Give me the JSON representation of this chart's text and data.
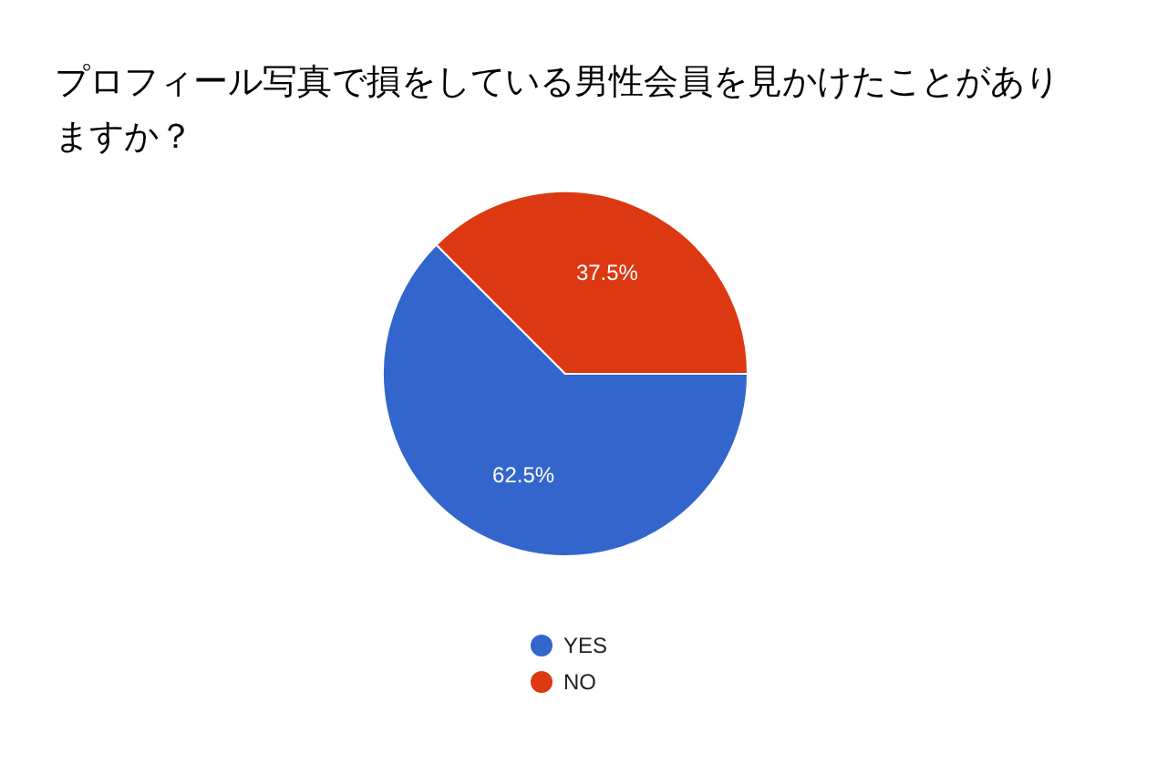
{
  "chart_data": {
    "type": "pie",
    "title": "プロフィール写真で損をしている男性会員を見かけたことがありますか？",
    "categories": [
      "YES",
      "NO"
    ],
    "values": [
      62.5,
      37.5
    ],
    "colors": [
      "#3366cc",
      "#dc3912"
    ],
    "value_labels": [
      "62.5%",
      "37.5%"
    ],
    "legend": "bottom"
  }
}
